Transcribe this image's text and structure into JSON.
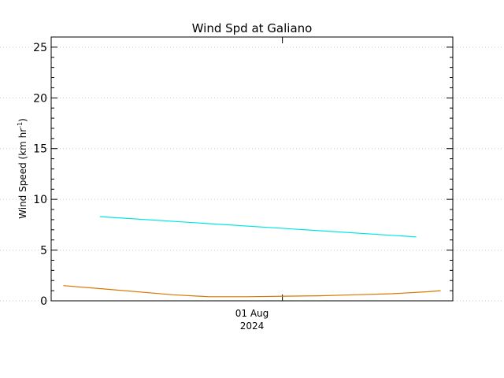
{
  "chart_data": {
    "type": "line",
    "title": "Wind Spd at Galiano",
    "ylabel_main": "Wind Speed (km hr",
    "ylabel_sup": "-1",
    "ylabel_close": ")",
    "xlabel": "",
    "ylim": [
      0,
      26
    ],
    "yticks": [
      0,
      5,
      10,
      15,
      20,
      25
    ],
    "x_domain": [
      "2024-07-30T10:00",
      "2024-08-02T04:00"
    ],
    "x_tick": {
      "at": "2024-08-01T00:00",
      "label_line1": "01 Aug",
      "label_line2": "2024"
    },
    "grid": "horizontal dotted",
    "series": [
      {
        "color": "#00e5e5",
        "x": [
          "2024-07-30T18:00",
          "2024-08-01T22:00"
        ],
        "y": [
          8.3,
          6.3
        ]
      },
      {
        "color": "#d97700",
        "x": [
          "2024-07-30T12:00",
          "2024-07-30T18:00",
          "2024-07-31T06:00",
          "2024-07-31T12:00",
          "2024-07-31T18:00",
          "2024-08-01T06:00",
          "2024-08-01T12:00",
          "2024-08-01T18:00",
          "2024-08-02T00:00",
          "2024-08-02T02:00"
        ],
        "y": [
          1.5,
          1.2,
          0.6,
          0.4,
          0.4,
          0.5,
          0.6,
          0.7,
          0.9,
          1.0
        ]
      }
    ]
  }
}
